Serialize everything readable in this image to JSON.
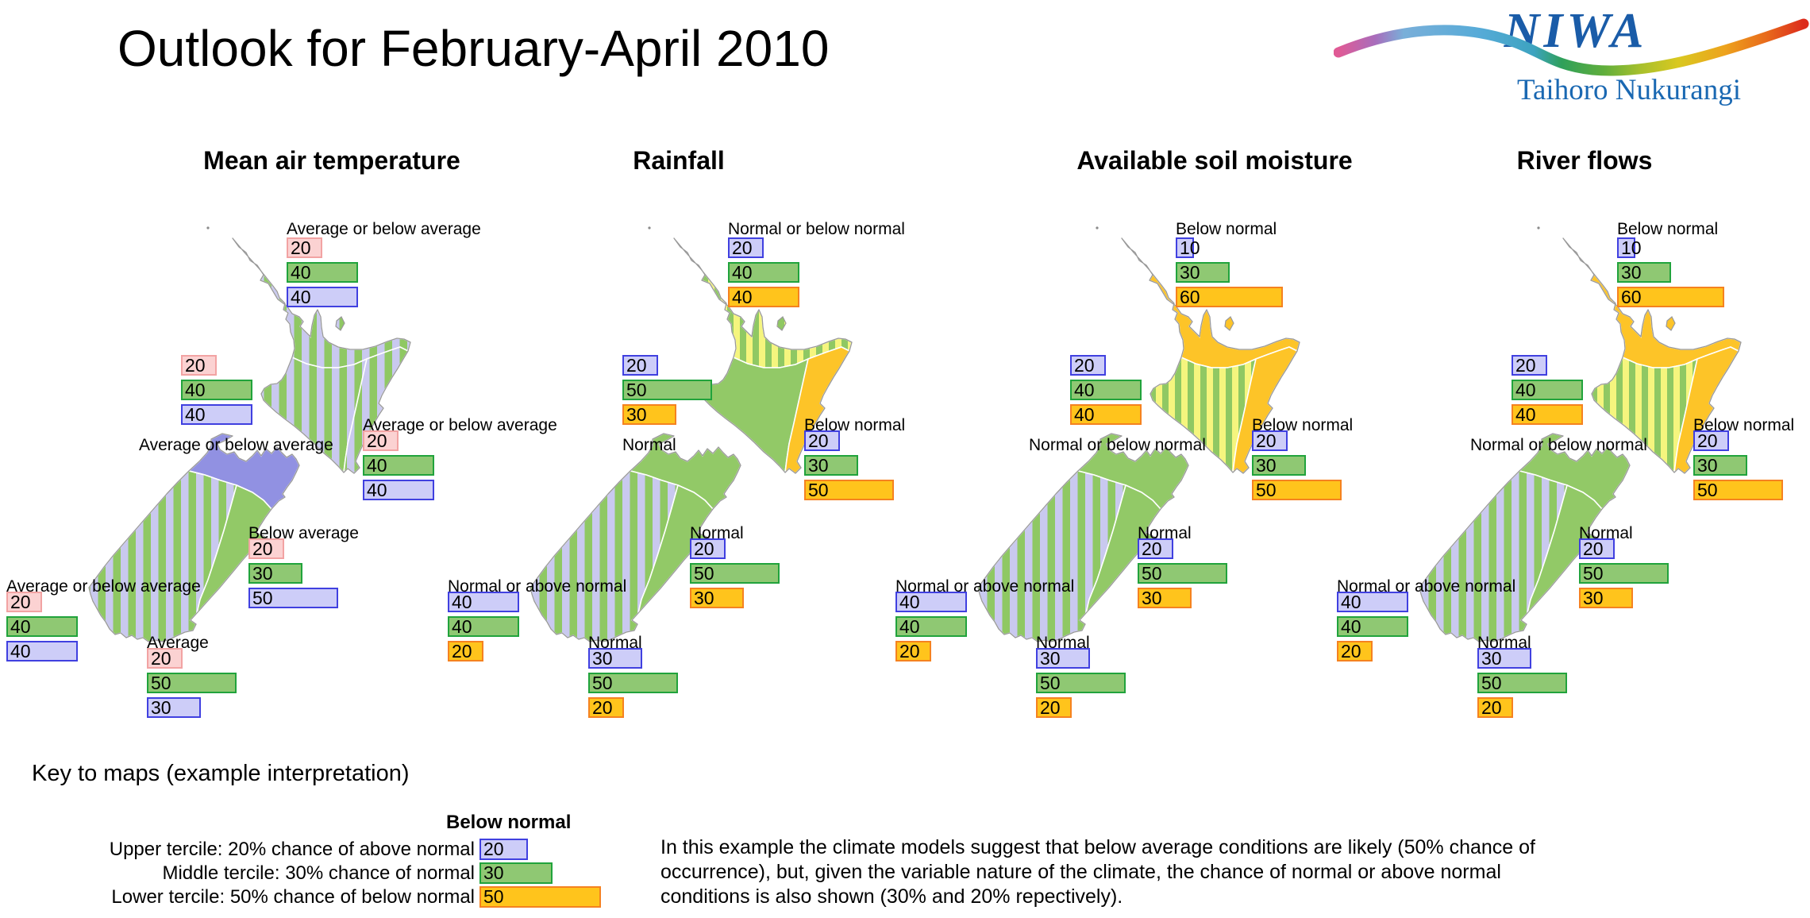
{
  "page_title": "Outlook for February-April 2010",
  "logo": {
    "brand": "NIWA",
    "subtitle": "Taihoro Nukurangi"
  },
  "tercile_colors": {
    "pink": {
      "fill": "#FBD2D2",
      "border": "#F2A3A3"
    },
    "green": {
      "fill": "#8FC873",
      "border": "#21A33C"
    },
    "lavender": {
      "fill": "#CDCDF8",
      "border": "#4040E0"
    },
    "orange": {
      "fill": "#FFC41C",
      "border": "#F58220"
    }
  },
  "region_colors": {
    "stripe_green": "#8FC863",
    "stripe_lavender": "#C9C9EF",
    "stripe_yellow": "#F5F57E",
    "solid_green": "#92C967",
    "solid_orange": "#FDC428",
    "solid_blue": "#9191E2",
    "coast": "#999999",
    "boundary": "#FFFFFF"
  },
  "maps": [
    {
      "title": "Mean air temperature",
      "regions": {
        "ni_north": "stripes_green_lavender",
        "ni_west": "stripes_green_lavender",
        "ni_east": "stripes_green_lavender",
        "si_north": "solid_blue",
        "si_west": "stripes_green_lavender",
        "si_east": "solid_green"
      },
      "annotations": [
        {
          "id": "northland",
          "label": "Average or below average",
          "label_position": "above",
          "bars": [
            {
              "value": 20,
              "color": "pink"
            },
            {
              "value": 40,
              "color": "green"
            },
            {
              "value": 40,
              "color": "lavender"
            }
          ]
        },
        {
          "id": "west-north-island",
          "label": "Average or below average",
          "label_position": "below",
          "bars": [
            {
              "value": 20,
              "color": "pink"
            },
            {
              "value": 40,
              "color": "green"
            },
            {
              "value": 40,
              "color": "lavender"
            }
          ]
        },
        {
          "id": "east-north-island",
          "label": "Average or below average",
          "label_position": "above",
          "bars": [
            {
              "value": 20,
              "color": "pink"
            },
            {
              "value": 40,
              "color": "green"
            },
            {
              "value": 40,
              "color": "lavender"
            }
          ]
        },
        {
          "id": "northern-south-island",
          "label": "Below average",
          "label_position": "above",
          "bars": [
            {
              "value": 20,
              "color": "pink"
            },
            {
              "value": 30,
              "color": "green"
            },
            {
              "value": 50,
              "color": "lavender"
            }
          ]
        },
        {
          "id": "southwest-south-island",
          "label": "Average or below average",
          "label_position": "above",
          "bars": [
            {
              "value": 20,
              "color": "pink"
            },
            {
              "value": 40,
              "color": "green"
            },
            {
              "value": 40,
              "color": "lavender"
            }
          ]
        },
        {
          "id": "southeast-south-island",
          "label": "Average",
          "label_position": "above",
          "bars": [
            {
              "value": 20,
              "color": "pink"
            },
            {
              "value": 50,
              "color": "green"
            },
            {
              "value": 30,
              "color": "lavender"
            }
          ]
        }
      ]
    },
    {
      "title": "Rainfall",
      "regions": {
        "ni_north": "stripes_yellow_green",
        "ni_west": "solid_green",
        "ni_east": "solid_orange",
        "si_north": "solid_green",
        "si_west": "stripes_green_lavender",
        "si_east": "solid_green"
      },
      "annotations": [
        {
          "id": "northland",
          "label": "Normal or below normal",
          "label_position": "above",
          "bars": [
            {
              "value": 20,
              "color": "lavender"
            },
            {
              "value": 40,
              "color": "green"
            },
            {
              "value": 40,
              "color": "orange"
            }
          ]
        },
        {
          "id": "west-north-island",
          "label": "Normal",
          "label_position": "below",
          "bars": [
            {
              "value": 20,
              "color": "lavender"
            },
            {
              "value": 50,
              "color": "green"
            },
            {
              "value": 30,
              "color": "orange"
            }
          ]
        },
        {
          "id": "east-north-island",
          "label": "Below normal",
          "label_position": "above",
          "bars": [
            {
              "value": 20,
              "color": "lavender"
            },
            {
              "value": 30,
              "color": "green"
            },
            {
              "value": 50,
              "color": "orange"
            }
          ]
        },
        {
          "id": "northern-south-island",
          "label": "Normal",
          "label_position": "above",
          "bars": [
            {
              "value": 20,
              "color": "lavender"
            },
            {
              "value": 50,
              "color": "green"
            },
            {
              "value": 30,
              "color": "orange"
            }
          ]
        },
        {
          "id": "southwest-south-island",
          "label": "Normal or above normal",
          "label_position": "above",
          "bars": [
            {
              "value": 40,
              "color": "lavender"
            },
            {
              "value": 40,
              "color": "green"
            },
            {
              "value": 20,
              "color": "orange"
            }
          ]
        },
        {
          "id": "southeast-south-island",
          "label": "Normal",
          "label_position": "above",
          "bars": [
            {
              "value": 30,
              "color": "lavender"
            },
            {
              "value": 50,
              "color": "green"
            },
            {
              "value": 20,
              "color": "orange"
            }
          ]
        }
      ]
    },
    {
      "title": "Available soil moisture",
      "regions": {
        "ni_north": "solid_orange",
        "ni_west": "stripes_yellow_green",
        "ni_east": "solid_orange",
        "si_north": "solid_green",
        "si_west": "stripes_green_lavender",
        "si_east": "solid_green"
      },
      "annotations": [
        {
          "id": "northland",
          "label": "Below normal",
          "label_position": "above",
          "bars": [
            {
              "value": 10,
              "color": "lavender"
            },
            {
              "value": 30,
              "color": "green"
            },
            {
              "value": 60,
              "color": "orange"
            }
          ]
        },
        {
          "id": "west-north-island",
          "label": "Normal or below normal",
          "label_position": "below",
          "bars": [
            {
              "value": 20,
              "color": "lavender"
            },
            {
              "value": 40,
              "color": "green"
            },
            {
              "value": 40,
              "color": "orange"
            }
          ]
        },
        {
          "id": "east-north-island",
          "label": "Below normal",
          "label_position": "above",
          "bars": [
            {
              "value": 20,
              "color": "lavender"
            },
            {
              "value": 30,
              "color": "green"
            },
            {
              "value": 50,
              "color": "orange"
            }
          ]
        },
        {
          "id": "northern-south-island",
          "label": "Normal",
          "label_position": "above",
          "bars": [
            {
              "value": 20,
              "color": "lavender"
            },
            {
              "value": 50,
              "color": "green"
            },
            {
              "value": 30,
              "color": "orange"
            }
          ]
        },
        {
          "id": "southwest-south-island",
          "label": "Normal or above normal",
          "label_position": "above",
          "bars": [
            {
              "value": 40,
              "color": "lavender"
            },
            {
              "value": 40,
              "color": "green"
            },
            {
              "value": 20,
              "color": "orange"
            }
          ]
        },
        {
          "id": "southeast-south-island",
          "label": "Normal",
          "label_position": "above",
          "bars": [
            {
              "value": 30,
              "color": "lavender"
            },
            {
              "value": 50,
              "color": "green"
            },
            {
              "value": 20,
              "color": "orange"
            }
          ]
        }
      ]
    },
    {
      "title": "River flows",
      "regions": {
        "ni_north": "solid_orange",
        "ni_west": "stripes_yellow_green",
        "ni_east": "solid_orange",
        "si_north": "solid_green",
        "si_west": "stripes_green_lavender",
        "si_east": "solid_green"
      },
      "annotations": [
        {
          "id": "northland",
          "label": "Below normal",
          "label_position": "above",
          "bars": [
            {
              "value": 10,
              "color": "lavender"
            },
            {
              "value": 30,
              "color": "green"
            },
            {
              "value": 60,
              "color": "orange"
            }
          ]
        },
        {
          "id": "west-north-island",
          "label": "Normal or below normal",
          "label_position": "below",
          "bars": [
            {
              "value": 20,
              "color": "lavender"
            },
            {
              "value": 40,
              "color": "green"
            },
            {
              "value": 40,
              "color": "orange"
            }
          ]
        },
        {
          "id": "east-north-island",
          "label": "Below normal",
          "label_position": "above",
          "bars": [
            {
              "value": 20,
              "color": "lavender"
            },
            {
              "value": 30,
              "color": "green"
            },
            {
              "value": 50,
              "color": "orange"
            }
          ]
        },
        {
          "id": "northern-south-island",
          "label": "Normal",
          "label_position": "above",
          "bars": [
            {
              "value": 20,
              "color": "lavender"
            },
            {
              "value": 50,
              "color": "green"
            },
            {
              "value": 30,
              "color": "orange"
            }
          ]
        },
        {
          "id": "southwest-south-island",
          "label": "Normal or above normal",
          "label_position": "above",
          "bars": [
            {
              "value": 40,
              "color": "lavender"
            },
            {
              "value": 40,
              "color": "green"
            },
            {
              "value": 20,
              "color": "orange"
            }
          ]
        },
        {
          "id": "southeast-south-island",
          "label": "Normal",
          "label_position": "above",
          "bars": [
            {
              "value": 30,
              "color": "lavender"
            },
            {
              "value": 50,
              "color": "green"
            },
            {
              "value": 20,
              "color": "orange"
            }
          ]
        }
      ]
    }
  ],
  "key": {
    "heading": "Key to maps (example interpretation)",
    "example_label": "Below normal",
    "rows": [
      {
        "text": "Upper tercile: 20% chance of above normal",
        "value": 20,
        "color": "lavender"
      },
      {
        "text": "Middle tercile: 30% chance of normal",
        "value": 30,
        "color": "green"
      },
      {
        "text": "Lower tercile: 50% chance of below normal",
        "value": 50,
        "color": "orange"
      }
    ],
    "note": "In this example the climate models suggest that below average conditions are likely (50% chance of occurrence), but, given the variable nature of the climate, the chance of normal or above normal conditions is also shown (30% and 20% repectively)."
  }
}
